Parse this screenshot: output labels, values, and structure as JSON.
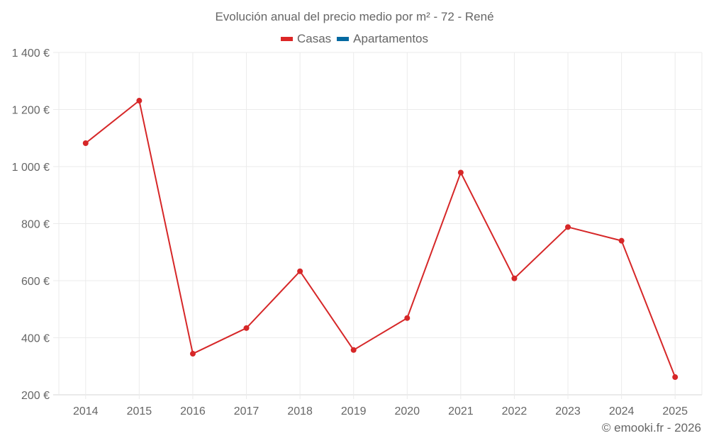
{
  "title": "Evolución anual del precio medio por m² - 72 - René",
  "legend": [
    {
      "label": "Casas",
      "color": "#dc2626"
    },
    {
      "label": "Apartamentos",
      "color": "#0369a1"
    }
  ],
  "credit": "© emooki.fr - 2026",
  "colors": {
    "series": "#d62728",
    "grid": "#ebebeb",
    "axis": "#d4d4d4",
    "text": "#666666"
  },
  "chart_data": {
    "type": "line",
    "title": "Evolución anual del precio medio por m² - 72 - René",
    "xlabel": "",
    "ylabel": "",
    "categories": [
      "2014",
      "2015",
      "2016",
      "2017",
      "2018",
      "2019",
      "2020",
      "2021",
      "2022",
      "2023",
      "2024",
      "2025"
    ],
    "series": [
      {
        "name": "Casas",
        "color": "#dc2626",
        "values": [
          1082,
          1231,
          344,
          434,
          633,
          357,
          469,
          979,
          608,
          788,
          740,
          262
        ]
      },
      {
        "name": "Apartamentos",
        "color": "#0369a1",
        "values": []
      }
    ],
    "ylim": [
      200,
      1400
    ],
    "yticks": [
      200,
      400,
      600,
      800,
      1000,
      1200,
      1400
    ],
    "ytick_labels": [
      "200 €",
      "400 €",
      "600 €",
      "800 €",
      "1 000 €",
      "1 200 €",
      "1 400 €"
    ],
    "grid": true,
    "legend_position": "top"
  }
}
